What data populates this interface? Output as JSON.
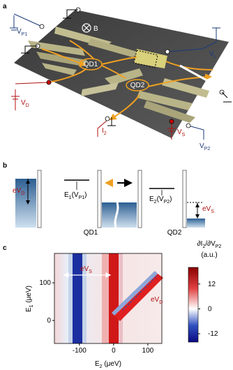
{
  "panel_labels": [
    "a",
    "b",
    "c"
  ],
  "panel_a": {
    "labels": {
      "vp1": [
        "V",
        "P1"
      ],
      "b": [
        "B"
      ],
      "vl": [
        "V",
        "L"
      ],
      "qd1": [
        "QD1"
      ],
      "qd2": [
        "QD2"
      ],
      "vd": [
        "V",
        "D"
      ],
      "i2": [
        "I",
        "2"
      ],
      "vs": [
        "V",
        "S"
      ],
      "vp2": [
        "V",
        "P2"
      ]
    }
  },
  "panel_b": {
    "labels": {
      "evd": [
        "eV",
        "D"
      ],
      "e1": [
        "E",
        "1",
        "(V",
        "P1",
        ")"
      ],
      "qd1": [
        "QD1"
      ],
      "e2": [
        "E",
        "2",
        "(V",
        "P2",
        ")"
      ],
      "qd2": [
        "QD2"
      ],
      "evs": [
        "eV",
        "S"
      ]
    }
  },
  "panel_c": {
    "xlabel": [
      "E",
      "2",
      " (μeV)"
    ],
    "ylabel": [
      "E",
      "1",
      " (μeV)"
    ],
    "xlim": [
      -173,
      141
    ],
    "ylim": [
      -61,
      178
    ],
    "xticks": [
      -100,
      0,
      100
    ],
    "yticks": [
      0,
      100
    ],
    "clim": [
      -16,
      20
    ],
    "cticks": [
      12,
      0,
      -12
    ],
    "clabel": [
      "∂I",
      "2",
      "/∂V",
      "P2"
    ],
    "clabel_unit": [
      "(a.u.)"
    ],
    "annotations": {
      "evs": [
        "eV",
        "S"
      ],
      "evd": [
        "eV",
        "D"
      ]
    }
  }
}
